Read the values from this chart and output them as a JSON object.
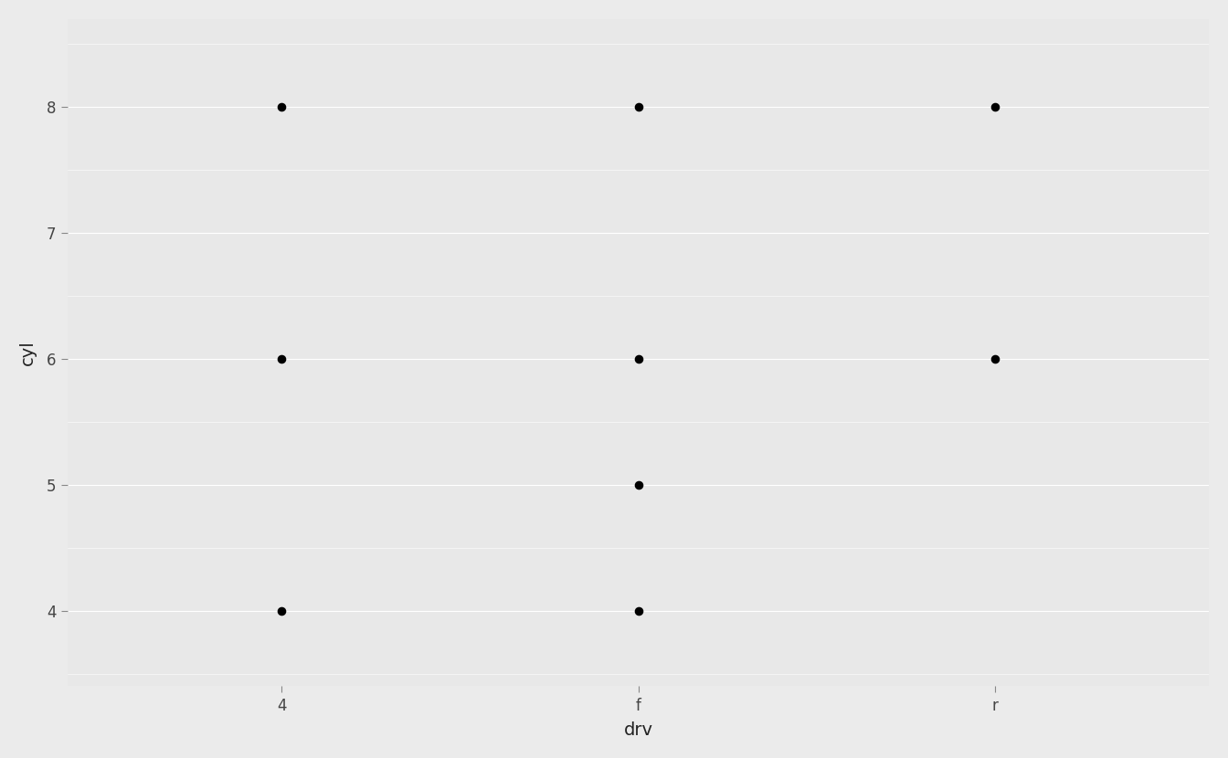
{
  "points": [
    {
      "drv": "4",
      "cyl": 4
    },
    {
      "drv": "4",
      "cyl": 6
    },
    {
      "drv": "4",
      "cyl": 8
    },
    {
      "drv": "f",
      "cyl": 4
    },
    {
      "drv": "f",
      "cyl": 5
    },
    {
      "drv": "f",
      "cyl": 6
    },
    {
      "drv": "f",
      "cyl": 8
    },
    {
      "drv": "r",
      "cyl": 6
    },
    {
      "drv": "r",
      "cyl": 8
    }
  ],
  "x_categories": [
    "4",
    "f",
    "r"
  ],
  "x_label": "drv",
  "y_label": "cyl",
  "y_major_ticks": [
    4,
    5,
    6,
    7,
    8
  ],
  "y_minor_ticks": [
    3.5,
    4.5,
    5.5,
    6.5,
    7.5,
    8.5
  ],
  "background_color": "#EBEBEB",
  "panel_background": "#E8E8E8",
  "major_grid_color": "#FFFFFF",
  "minor_grid_color": "#FFFFFF",
  "point_color": "#000000",
  "point_size": 35,
  "axis_label_fontsize": 14,
  "tick_fontsize": 12,
  "ylim": [
    3.4,
    8.7
  ],
  "xlim": [
    -0.6,
    2.6
  ]
}
